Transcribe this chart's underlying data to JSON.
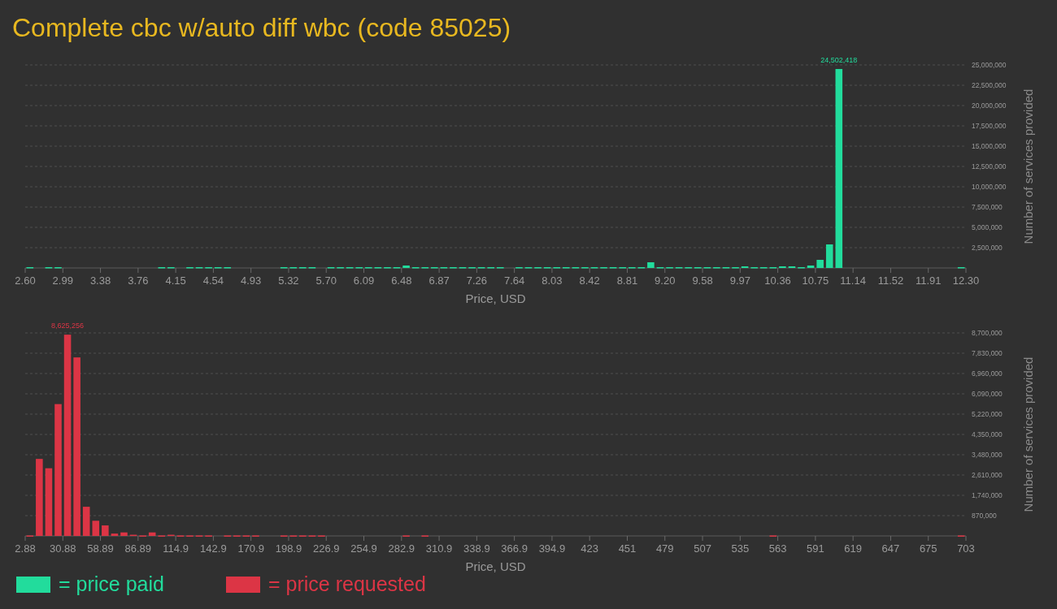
{
  "chart_data": [
    {
      "type": "histogram",
      "title": "Complete cbc w/auto diff wbc (code 85025)",
      "xlabel": "Price, USD",
      "ylabel": "Number of services provided",
      "grid": "y",
      "legend": "bottom",
      "bins": [
        2.6,
        2.697,
        2.794,
        2.891,
        2.988,
        3.085,
        3.182,
        3.279,
        3.376,
        3.473,
        3.57,
        3.667,
        3.764,
        3.861,
        3.958,
        4.055,
        4.152,
        4.249,
        4.346,
        4.443,
        4.54,
        4.637,
        4.734,
        4.831,
        4.928,
        5.025,
        5.122,
        5.219,
        5.316,
        5.413,
        5.51,
        5.607,
        5.704,
        5.801,
        5.898,
        5.995,
        6.092,
        6.189,
        6.286,
        6.383,
        6.48,
        6.577,
        6.674,
        6.771,
        6.868,
        6.965,
        7.062,
        7.159,
        7.256,
        7.353,
        7.45,
        7.547,
        7.644,
        7.741,
        7.838,
        7.935,
        8.032,
        8.129,
        8.226,
        8.323,
        8.42,
        8.517,
        8.614,
        8.711,
        8.808,
        8.905,
        9.002,
        9.099,
        9.196,
        9.293,
        9.39,
        9.487,
        9.584,
        9.681,
        9.778,
        9.875,
        9.972,
        10.069,
        10.166,
        10.263,
        10.36,
        10.457,
        10.554,
        10.651,
        10.748,
        10.845,
        10.942,
        11.039,
        11.136,
        11.233,
        11.33,
        11.427,
        11.524,
        11.621,
        11.718,
        11.815,
        11.912,
        12.009,
        12.106,
        12.203,
        12.3
      ],
      "series": [
        {
          "name": "= price paid",
          "color": "#22dc9c",
          "values": [
            100000,
            0,
            100000,
            100000,
            0,
            0,
            0,
            0,
            0,
            0,
            0,
            0,
            0,
            0,
            100000,
            100000,
            0,
            100000,
            100000,
            100000,
            100000,
            100000,
            0,
            0,
            0,
            0,
            0,
            100000,
            100000,
            100000,
            100000,
            0,
            100000,
            100000,
            100000,
            100000,
            100000,
            100000,
            100000,
            100000,
            300000,
            100000,
            100000,
            100000,
            100000,
            100000,
            100000,
            100000,
            100000,
            100000,
            100000,
            0,
            100000,
            100000,
            100000,
            100000,
            100000,
            100000,
            100000,
            100000,
            100000,
            100000,
            100000,
            100000,
            100000,
            100000,
            700000,
            100000,
            100000,
            100000,
            100000,
            100000,
            100000,
            100000,
            100000,
            100000,
            200000,
            100000,
            100000,
            100000,
            200000,
            200000,
            100000,
            300000,
            1000000,
            2900000,
            24502418,
            0,
            0,
            0,
            0,
            0,
            0,
            0,
            0,
            0,
            0,
            0,
            0,
            100000
          ],
          "value_labels": [
            null,
            null,
            null,
            null,
            null,
            null,
            null,
            null,
            null,
            null,
            null,
            null,
            null,
            null,
            null,
            null,
            null,
            null,
            null,
            null,
            null,
            null,
            null,
            null,
            null,
            null,
            null,
            null,
            null,
            null,
            null,
            null,
            null,
            null,
            null,
            null,
            null,
            null,
            null,
            null,
            null,
            null,
            null,
            null,
            null,
            null,
            null,
            null,
            null,
            null,
            null,
            null,
            null,
            null,
            null,
            null,
            null,
            null,
            null,
            null,
            null,
            null,
            null,
            null,
            null,
            null,
            null,
            null,
            null,
            null,
            null,
            null,
            null,
            null,
            null,
            null,
            null,
            null,
            null,
            null,
            null,
            null,
            null,
            null,
            null,
            null,
            "24,502,418",
            null,
            null,
            null,
            null,
            null,
            null,
            null,
            null,
            null,
            null,
            null,
            null,
            null
          ]
        }
      ],
      "xlim": [
        2.6,
        12.3
      ],
      "xticks": [
        {
          "value": 2.6,
          "label": "2.60"
        },
        {
          "value": 2.988,
          "label": "2.99"
        },
        {
          "value": 3.376,
          "label": "3.38"
        },
        {
          "value": 3.764,
          "label": "3.76"
        },
        {
          "value": 4.152,
          "label": "4.15"
        },
        {
          "value": 4.54,
          "label": "4.54"
        },
        {
          "value": 4.928,
          "label": "4.93"
        },
        {
          "value": 5.316,
          "label": "5.32"
        },
        {
          "value": 5.704,
          "label": "5.70"
        },
        {
          "value": 6.092,
          "label": "6.09"
        },
        {
          "value": 6.48,
          "label": "6.48"
        },
        {
          "value": 6.868,
          "label": "6.87"
        },
        {
          "value": 7.256,
          "label": "7.26"
        },
        {
          "value": 7.644,
          "label": "7.64"
        },
        {
          "value": 8.032,
          "label": "8.03"
        },
        {
          "value": 8.42,
          "label": "8.42"
        },
        {
          "value": 8.808,
          "label": "8.81"
        },
        {
          "value": 9.196,
          "label": "9.20"
        },
        {
          "value": 9.584,
          "label": "9.58"
        },
        {
          "value": 9.972,
          "label": "9.97"
        },
        {
          "value": 10.36,
          "label": "10.36"
        },
        {
          "value": 10.748,
          "label": "10.75"
        },
        {
          "value": 11.136,
          "label": "11.14"
        },
        {
          "value": 11.524,
          "label": "11.52"
        },
        {
          "value": 11.912,
          "label": "11.91"
        },
        {
          "value": 12.3,
          "label": "12.30"
        }
      ],
      "ylim": [
        0,
        25000000
      ],
      "yticks": [
        {
          "value": 2500000,
          "label": "2,500,000"
        },
        {
          "value": 5000000,
          "label": "5,000,000"
        },
        {
          "value": 7500000,
          "label": "7,500,000"
        },
        {
          "value": 10000000,
          "label": "10,000,000"
        },
        {
          "value": 12500000,
          "label": "12,500,000"
        },
        {
          "value": 15000000,
          "label": "15,000,000"
        },
        {
          "value": 17500000,
          "label": "17,500,000"
        },
        {
          "value": 20000000,
          "label": "20,000,000"
        },
        {
          "value": 22500000,
          "label": "22,500,000"
        },
        {
          "value": 25000000,
          "label": "25,000,000"
        }
      ]
    },
    {
      "type": "histogram",
      "xlabel": "Price, USD",
      "ylabel": "Number of services provided",
      "grid": "y",
      "legend": "bottom",
      "bins": [
        2.88,
        9.88,
        16.88,
        23.88,
        30.88,
        37.89,
        44.89,
        51.89,
        58.89,
        65.89,
        72.89,
        79.89,
        86.89,
        93.9,
        100.9,
        107.9,
        114.9,
        121.9,
        128.9,
        135.9,
        142.9,
        149.91,
        156.91,
        163.91,
        170.91,
        177.91,
        184.91,
        191.91,
        198.91,
        205.91,
        212.92,
        219.92,
        226.92,
        233.92,
        240.92,
        247.92,
        254.92,
        261.92,
        268.93,
        275.93,
        282.93,
        289.93,
        296.93,
        303.93,
        310.93,
        317.93,
        324.94,
        331.94,
        338.94,
        345.94,
        352.94,
        359.94,
        366.94,
        373.94,
        380.94,
        387.95,
        394.95,
        401.95,
        408.95,
        415.95,
        422.95,
        429.95,
        436.95,
        443.96,
        450.96,
        457.96,
        464.96,
        471.96,
        478.96,
        485.96,
        492.96,
        499.97,
        506.97,
        513.97,
        520.97,
        527.97,
        534.97,
        541.97,
        548.97,
        555.97,
        562.98,
        569.98,
        576.98,
        583.98,
        590.98,
        597.98,
        604.98,
        611.98,
        618.99,
        625.99,
        632.99,
        639.99,
        646.99,
        653.99,
        660.99,
        667.99,
        675.0,
        682.0,
        689.0,
        696.0,
        703
      ],
      "series": [
        {
          "name": "= price requested",
          "color": "#dc3545",
          "values": [
            20000,
            3300000,
            2900000,
            5650000,
            8625256,
            7650000,
            1250000,
            650000,
            450000,
            100000,
            150000,
            50000,
            20000,
            150000,
            20000,
            50000,
            20000,
            20000,
            20000,
            20000,
            0,
            20000,
            20000,
            20000,
            20000,
            0,
            0,
            20000,
            20000,
            20000,
            20000,
            20000,
            0,
            0,
            0,
            0,
            0,
            0,
            0,
            0,
            20000,
            0,
            20000,
            0,
            0,
            0,
            0,
            0,
            0,
            0,
            0,
            0,
            0,
            0,
            0,
            0,
            0,
            0,
            0,
            0,
            0,
            0,
            0,
            0,
            0,
            0,
            0,
            0,
            0,
            0,
            0,
            0,
            0,
            0,
            0,
            0,
            0,
            0,
            0,
            20000,
            0,
            0,
            0,
            0,
            0,
            0,
            0,
            0,
            0,
            0,
            0,
            0,
            0,
            0,
            0,
            0,
            0,
            0,
            0,
            20000
          ],
          "value_labels": [
            null,
            null,
            null,
            null,
            "8,625,256",
            null,
            null,
            null,
            null,
            null,
            null,
            null,
            null,
            null,
            null,
            null,
            null,
            null,
            null,
            null,
            null,
            null,
            null,
            null,
            null,
            null,
            null,
            null,
            null,
            null,
            null,
            null,
            null,
            null,
            null,
            null,
            null,
            null,
            null,
            null,
            null,
            null,
            null,
            null,
            null,
            null,
            null,
            null,
            null,
            null,
            null,
            null,
            null,
            null,
            null,
            null,
            null,
            null,
            null,
            null,
            null,
            null,
            null,
            null,
            null,
            null,
            null,
            null,
            null,
            null,
            null,
            null,
            null,
            null,
            null,
            null,
            null,
            null,
            null,
            null,
            null,
            null,
            null,
            null,
            null,
            null,
            null,
            null,
            null,
            null,
            null,
            null,
            null,
            null,
            null,
            null,
            null,
            null,
            null,
            null
          ]
        }
      ],
      "xlim": [
        2.88,
        703
      ],
      "xticks": [
        2.88,
        {
          "value": 30.88,
          "label": "30.88"
        },
        {
          "value": 58.89,
          "label": "58.89"
        },
        {
          "value": 86.89,
          "label": "86.89"
        },
        {
          "value": 114.9,
          "label": "114.9"
        },
        {
          "value": 142.9,
          "label": "142.9"
        },
        {
          "value": 170.91,
          "label": "170.9"
        },
        {
          "value": 198.91,
          "label": "198.9"
        },
        {
          "value": 226.92,
          "label": "226.9"
        },
        {
          "value": 254.92,
          "label": "254.9"
        },
        {
          "value": 282.93,
          "label": "282.9"
        },
        {
          "value": 310.93,
          "label": "310.9"
        },
        {
          "value": 338.94,
          "label": "338.9"
        },
        {
          "value": 366.94,
          "label": "366.9"
        },
        {
          "value": 394.95,
          "label": "394.9"
        },
        {
          "value": 422.95,
          "label": "423"
        },
        {
          "value": 450.96,
          "label": "451"
        },
        {
          "value": 478.96,
          "label": "479"
        },
        {
          "value": 506.97,
          "label": "507"
        },
        {
          "value": 534.97,
          "label": "535"
        },
        {
          "value": 562.98,
          "label": "563"
        },
        {
          "value": 590.98,
          "label": "591"
        },
        {
          "value": 618.99,
          "label": "619"
        },
        {
          "value": 646.99,
          "label": "647"
        },
        {
          "value": 675.0,
          "label": "675"
        },
        703
      ],
      "ylim": [
        0,
        8700000
      ],
      "yticks": [
        {
          "value": 870000,
          "label": "870,000"
        },
        {
          "value": 1740000,
          "label": "1,740,000"
        },
        {
          "value": 2610000,
          "label": "2,610,000"
        },
        {
          "value": 3480000,
          "label": "3,480,000"
        },
        {
          "value": 4350000,
          "label": "4,350,000"
        },
        {
          "value": 5220000,
          "label": "5,220,000"
        },
        {
          "value": 6090000,
          "label": "6,090,000"
        },
        {
          "value": 6960000,
          "label": "6,960,000"
        },
        {
          "value": 7830000,
          "label": "7,830,000"
        },
        {
          "value": 8700000,
          "label": "8,700,000"
        }
      ]
    }
  ]
}
